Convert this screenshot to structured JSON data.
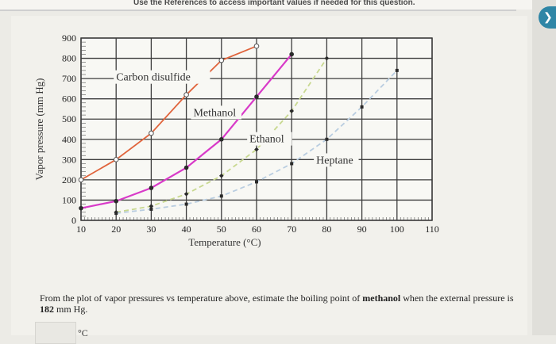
{
  "header": {
    "references_text": "Use the References to access important values if needed for this question."
  },
  "question": {
    "text_before": "From the plot of vapor pressures vs temperature above, estimate the boiling point of ",
    "compound": "methanol",
    "text_middle": " when the external pressure is ",
    "pressure_value": "182",
    "text_after": " mm Hg."
  },
  "answer": {
    "value": "",
    "unit": "°C"
  },
  "chart_data": {
    "type": "line",
    "xlabel": "Temperature (°C)",
    "ylabel": "Vapor pressure (mm Hg)",
    "xlim": [
      10,
      110
    ],
    "ylim": [
      0,
      900
    ],
    "x_ticks": [
      10,
      20,
      30,
      40,
      50,
      60,
      70,
      80,
      90,
      100,
      110
    ],
    "y_ticks": [
      0,
      100,
      200,
      300,
      400,
      500,
      600,
      700,
      800,
      900
    ],
    "grid": true,
    "series": [
      {
        "name": "Carbon disulfide",
        "color": "#e0643c",
        "marker": "circle-open",
        "x": [
          10,
          20,
          30,
          40,
          50,
          60
        ],
        "y": [
          200,
          300,
          430,
          620,
          790,
          860
        ]
      },
      {
        "name": "Methanol",
        "color": "#d83ac8",
        "marker": "circle",
        "x": [
          10,
          20,
          30,
          40,
          50,
          60,
          70
        ],
        "y": [
          60,
          95,
          160,
          260,
          400,
          610,
          820
        ]
      },
      {
        "name": "Ethanol",
        "color": "#c8d890",
        "marker": "diamond",
        "x": [
          20,
          30,
          40,
          50,
          60,
          70,
          80
        ],
        "y": [
          40,
          70,
          130,
          220,
          350,
          540,
          800
        ]
      },
      {
        "name": "Heptane",
        "color": "#b9cde0",
        "marker": "square",
        "x": [
          20,
          30,
          40,
          50,
          60,
          70,
          80,
          90,
          100
        ],
        "y": [
          35,
          55,
          80,
          120,
          190,
          280,
          400,
          560,
          740
        ]
      }
    ]
  }
}
